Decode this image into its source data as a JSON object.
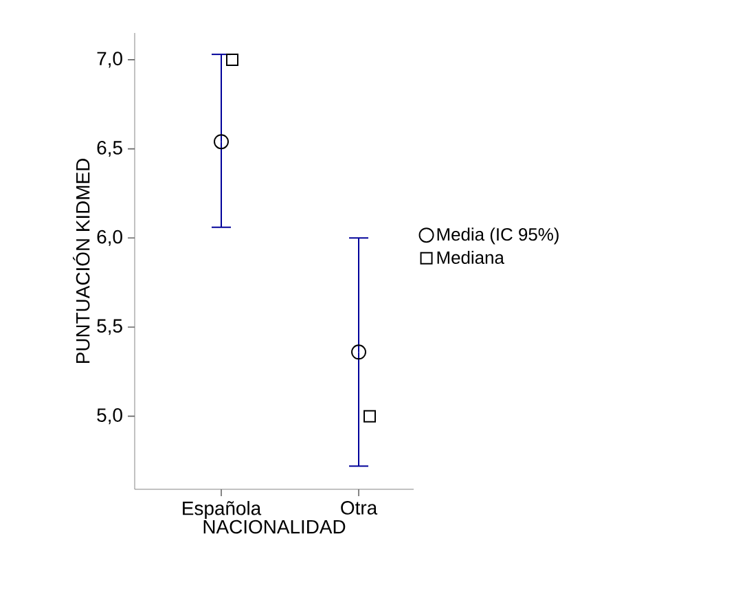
{
  "chart_data": {
    "type": "scatter",
    "xlabel": "NACIONALIDAD",
    "ylabel": "PUNTUACIÓN KIDMED",
    "categories": [
      "Española",
      "Otra"
    ],
    "series": [
      {
        "name": "Media (IC 95%)",
        "color": "#000000",
        "marker": "circle",
        "values": [
          6.54,
          5.36
        ],
        "errors": [
          [
            6.06,
            7.03
          ],
          [
            4.72,
            6.0
          ]
        ]
      },
      {
        "name": "Mediana",
        "color": "#000000",
        "marker": "square",
        "values": [
          7.0,
          5.0
        ]
      }
    ],
    "ylim": [
      4.59,
      7.15
    ],
    "yticks": [
      {
        "value": 5,
        "label": "5,0"
      },
      {
        "value": 5.5,
        "label": "5,5"
      },
      {
        "value": 6,
        "label": "6,0"
      },
      {
        "value": 6.5,
        "label": "6,5"
      },
      {
        "value": 7,
        "label": "7,0"
      }
    ],
    "legend": "right",
    "grid": false
  }
}
